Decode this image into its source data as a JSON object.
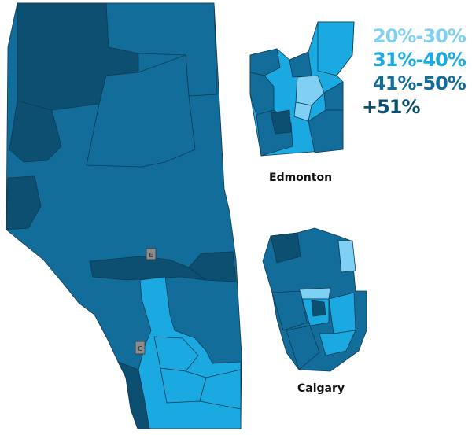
{
  "legend": [
    {
      "label": "20%-30%",
      "color": "#7fd0f2"
    },
    {
      "label": "31%-40%",
      "color": "#1ba9e1"
    },
    {
      "label": "41%-50%",
      "color": "#126d9b"
    },
    {
      "label": "+51%",
      "color": "#0d4f70"
    }
  ],
  "insets": {
    "edmonton": {
      "label": "Edmonton"
    },
    "calgary": {
      "label": "Calgary"
    }
  },
  "province_markers": {
    "edmonton": "E",
    "calgary": "C"
  },
  "colors": {
    "band_20_30": "#7fd0f2",
    "band_31_40": "#1ba9e1",
    "band_41_50": "#126d9b",
    "band_51_plus": "#0d4f70",
    "city_marker": "#8c8c8c",
    "border": "#0f3a52"
  }
}
